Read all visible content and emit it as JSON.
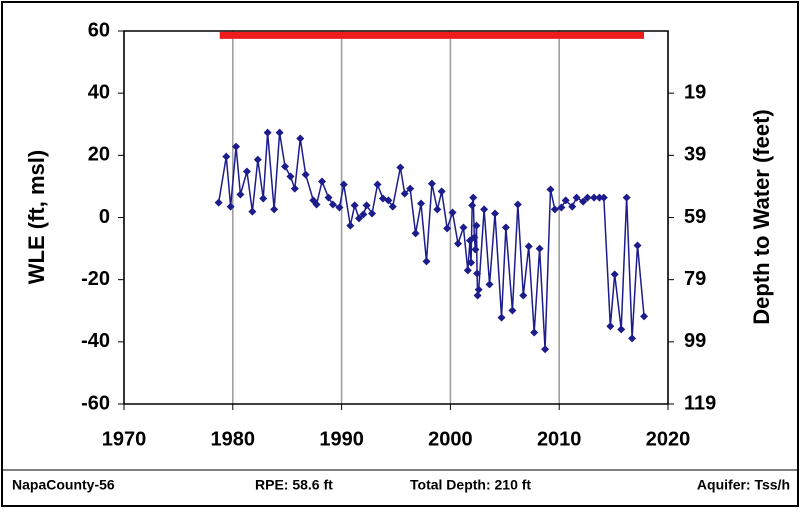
{
  "chart_data": {
    "type": "line",
    "y_label": "WLE (ft, msl)",
    "y2_label": "Depth to Water (feet)",
    "x": [
      1978.7,
      1979.4,
      1979.8,
      1980.3,
      1980.7,
      1981.3,
      1981.8,
      1982.3,
      1982.8,
      1983.2,
      1983.8,
      1984.3,
      1984.8,
      1985.3,
      1985.7,
      1986.2,
      1986.7,
      1987.4,
      1987.7,
      1988.2,
      1988.8,
      1989.2,
      1989.8,
      1990.2,
      1990.8,
      1991.2,
      1991.6,
      1992.0,
      1992.3,
      1992.8,
      1993.3,
      1993.8,
      1994.3,
      1994.7,
      1995.4,
      1995.8,
      1996.3,
      1996.8,
      1997.3,
      1997.8,
      1998.3,
      1998.8,
      1999.2,
      1999.7,
      2000.2,
      2000.7,
      2001.2,
      2001.6,
      2001.8,
      2001.9,
      2002.0,
      2002.1,
      2002.2,
      2002.3,
      2002.4,
      2002.45,
      2002.5,
      2002.6,
      2003.1,
      2003.6,
      2004.1,
      2004.7,
      2005.1,
      2005.7,
      2006.2,
      2006.7,
      2007.2,
      2007.7,
      2008.2,
      2008.7,
      2009.2,
      2009.6,
      2010.2,
      2010.6,
      2011.2,
      2011.6,
      2012.2,
      2012.6,
      2013.2,
      2013.7,
      2014.1,
      2014.7,
      2015.1,
      2015.7,
      2016.2,
      2016.7,
      2017.2,
      2017.8
    ],
    "series": [
      {
        "name": "WLE",
        "color": "#1c1c8c",
        "values": [
          4.8,
          19.6,
          3.5,
          22.8,
          7.4,
          14.8,
          1.9,
          18.6,
          6.1,
          27.3,
          2.6,
          27.3,
          16.4,
          13.2,
          9.3,
          25.4,
          13.8,
          5.5,
          4.2,
          11.6,
          6.4,
          4.2,
          3.2,
          10.6,
          -2.6,
          3.9,
          -0.3,
          1.0,
          3.9,
          1.3,
          10.6,
          6.1,
          5.5,
          3.5,
          16.1,
          7.7,
          9.3,
          -5.1,
          4.5,
          -14.1,
          10.9,
          2.6,
          8.4,
          -3.5,
          1.6,
          -8.4,
          -3.2,
          -17.0,
          -7.4,
          -14.5,
          3.9,
          6.4,
          -6.4,
          -10.3,
          -2.6,
          -18.0,
          -25.1,
          -23.2,
          2.6,
          -21.5,
          1.3,
          -32.2,
          -3.2,
          -29.9,
          4.2,
          -25.1,
          -9.3,
          -37.0,
          -10.0,
          -42.4,
          9.0,
          2.6,
          3.2,
          5.5,
          3.5,
          6.4,
          5.1,
          6.4,
          6.4,
          6.4,
          6.4,
          -35.0,
          -18.3,
          -36.0,
          6.4,
          -38.9,
          -9.0,
          -31.8
        ]
      }
    ],
    "rpe_line": {
      "value": 58.6,
      "color": "#ee1c1c",
      "x": [
        1978.8,
        2017.8
      ]
    },
    "xlim": [
      1970,
      2020
    ],
    "xticks": [
      1970,
      1980,
      1990,
      2000,
      2010,
      2020
    ],
    "ylim": [
      -60,
      60
    ],
    "yticks": [
      -60,
      -40,
      -20,
      0,
      20,
      40,
      60
    ],
    "y2lim": [
      118.6,
      -1.4
    ],
    "y2ticks": [
      {
        "value": 118.6,
        "label": "119"
      },
      {
        "value": 98.6,
        "label": "99"
      },
      {
        "value": 78.6,
        "label": "79"
      },
      {
        "value": 58.6,
        "label": "59"
      },
      {
        "value": 38.6,
        "label": "39"
      },
      {
        "value": 18.6,
        "label": "19"
      }
    ],
    "grid": "x",
    "footer": [
      "NapaCounty-56",
      "RPE: 58.6 ft",
      "Total Depth: 210 ft",
      "Aquifer: Tss/h"
    ]
  }
}
